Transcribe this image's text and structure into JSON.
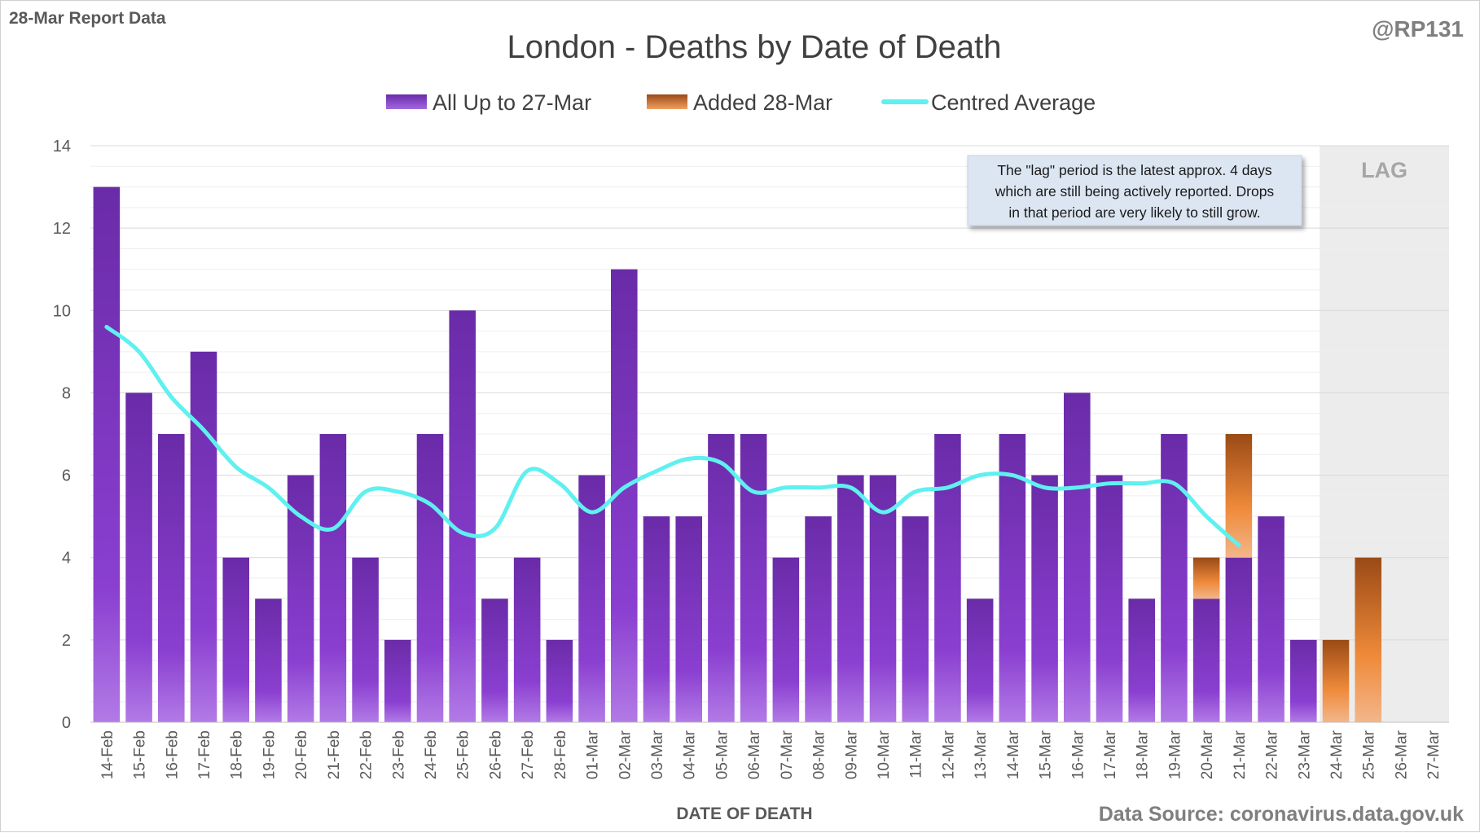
{
  "corner_left": "28-Mar Report Data",
  "corner_right": "@RP131",
  "source": "Data Source: coronavirus.data.gov.uk",
  "note_lines": [
    "The \"lag\" period is the latest approx. 4 days",
    "which are still being actively reported.  Drops",
    "in that period are very likely to still grow."
  ],
  "lag_label": "LAG",
  "colors": {
    "existing": "#7a2fc0",
    "added": "#e07a2a",
    "average": "#5ff0f0",
    "lag_shade": "#ececec"
  },
  "chart_data": {
    "type": "bar",
    "title": "London - Deaths by Date of Death",
    "xlabel": "DATE OF DEATH",
    "ylabel": "",
    "ylim": [
      0,
      14
    ],
    "yticks": [
      0,
      2,
      4,
      6,
      8,
      10,
      12,
      14
    ],
    "grid": true,
    "legend_position": "top",
    "stacked": true,
    "lag_categories": [
      "24-Mar",
      "25-Mar",
      "26-Mar",
      "27-Mar"
    ],
    "categories": [
      "14-Feb",
      "15-Feb",
      "16-Feb",
      "17-Feb",
      "18-Feb",
      "19-Feb",
      "20-Feb",
      "21-Feb",
      "22-Feb",
      "23-Feb",
      "24-Feb",
      "25-Feb",
      "26-Feb",
      "27-Feb",
      "28-Feb",
      "01-Mar",
      "02-Mar",
      "03-Mar",
      "04-Mar",
      "05-Mar",
      "06-Mar",
      "07-Mar",
      "08-Mar",
      "09-Mar",
      "10-Mar",
      "11-Mar",
      "12-Mar",
      "13-Mar",
      "14-Mar",
      "15-Mar",
      "16-Mar",
      "17-Mar",
      "18-Mar",
      "19-Mar",
      "20-Mar",
      "21-Mar",
      "22-Mar",
      "23-Mar",
      "24-Mar",
      "25-Mar",
      "26-Mar",
      "27-Mar"
    ],
    "series": [
      {
        "name": "All Up to 27-Mar",
        "kind": "bar",
        "values": [
          13,
          8,
          7,
          9,
          4,
          3,
          6,
          7,
          4,
          2,
          7,
          10,
          3,
          4,
          2,
          6,
          11,
          5,
          5,
          7,
          7,
          4,
          5,
          6,
          6,
          5,
          7,
          3,
          7,
          6,
          8,
          6,
          3,
          7,
          3,
          4,
          5,
          2,
          0,
          0,
          0,
          0
        ]
      },
      {
        "name": "Added 28-Mar",
        "kind": "bar",
        "values": [
          0,
          0,
          0,
          0,
          0,
          0,
          0,
          0,
          0,
          0,
          0,
          0,
          0,
          0,
          0,
          0,
          0,
          0,
          0,
          0,
          0,
          0,
          0,
          0,
          0,
          0,
          0,
          0,
          0,
          0,
          0,
          0,
          0,
          0,
          1,
          3,
          0,
          0,
          2,
          4,
          0,
          0
        ]
      },
      {
        "name": "Centred Average",
        "kind": "line",
        "values": [
          9.6,
          9.0,
          7.9,
          7.1,
          6.2,
          5.7,
          5.0,
          4.7,
          5.6,
          5.6,
          5.3,
          4.6,
          4.7,
          6.1,
          5.8,
          5.1,
          5.7,
          6.1,
          6.4,
          6.3,
          5.6,
          5.7,
          5.7,
          5.7,
          5.1,
          5.6,
          5.7,
          6.0,
          6.0,
          5.7,
          5.7,
          5.8,
          5.8,
          5.8,
          5.0,
          4.3,
          null,
          null,
          null,
          null,
          null,
          null
        ]
      }
    ]
  }
}
